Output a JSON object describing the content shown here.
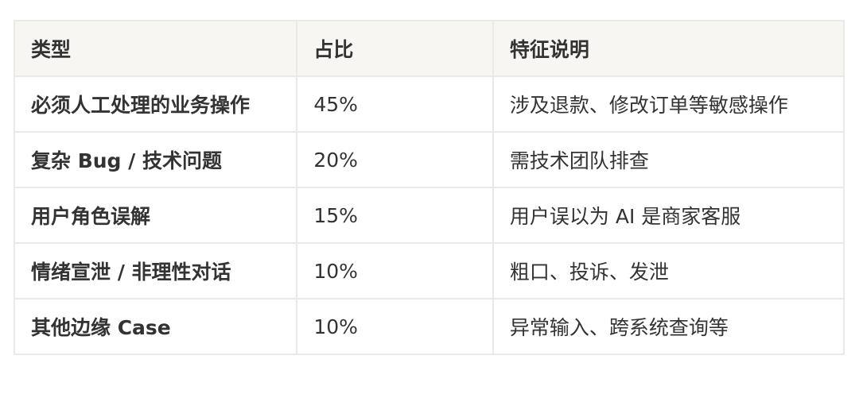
{
  "table": {
    "headers": [
      "类型",
      "占比",
      "特征说明"
    ],
    "rows": [
      [
        "必须人工处理的业务操作",
        "45%",
        "涉及退款、修改订单等敏感操作"
      ],
      [
        "复杂 Bug / 技术问题",
        "20%",
        "需技术团队排查"
      ],
      [
        "用户角色误解",
        "15%",
        "用户误以为 AI 是商家客服"
      ],
      [
        "情绪宣泄 / 非理性对话",
        "10%",
        "粗口、投诉、发泄"
      ],
      [
        "其他边缘 Case",
        "10%",
        "异常输入、跨系统查询等"
      ]
    ]
  }
}
